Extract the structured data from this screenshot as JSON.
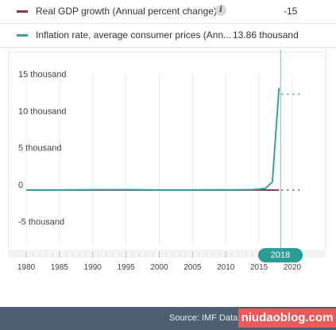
{
  "legend": {
    "items": [
      {
        "label": "Real GDP growth (Annual percent change)",
        "value": "-15",
        "color": "#7a3e52",
        "info_icon": "info-icon"
      },
      {
        "label": "Inflation rate, average consumer prices (Ann...",
        "value": "13.86 thousand",
        "color": "#3aa39a"
      }
    ]
  },
  "selected_year": "2018",
  "footer": {
    "source": "Source: IMF DataM",
    "watermark": "niudaoblog.com"
  },
  "chart_data": {
    "type": "line",
    "y_ticks": [
      "15 thousand",
      "10 thousand",
      "5 thousand",
      "0",
      "-5 thousand"
    ],
    "x_ticks": [
      "1980",
      "1985",
      "1990",
      "1995",
      "2000",
      "2005",
      "2010",
      "2015",
      "2020"
    ],
    "ylim": [
      -6000,
      16000
    ],
    "xlim": [
      1979,
      2022
    ],
    "grid": true,
    "series": [
      {
        "name": "Real GDP growth (Annual percent change)",
        "color": "#7a3e52",
        "x": [
          1980,
          1985,
          1990,
          1995,
          2000,
          2005,
          2010,
          2013,
          2014,
          2015,
          2016,
          2017,
          2018
        ],
        "y": [
          0,
          0,
          0,
          0,
          0,
          0,
          0,
          0,
          0,
          0,
          0,
          0,
          -15
        ],
        "projection": {
          "x": [
            2018,
            2022
          ],
          "y": [
            0,
            0
          ]
        }
      },
      {
        "name": "Inflation rate, average consumer prices (Annual percent change)",
        "color": "#3aa39a",
        "x": [
          1980,
          1985,
          1990,
          1995,
          2000,
          2005,
          2010,
          2013,
          2014,
          2015,
          2016,
          2017,
          2018
        ],
        "y": [
          20,
          10,
          40,
          60,
          20,
          20,
          30,
          40,
          60,
          120,
          250,
          1100,
          13860
        ],
        "projection": {
          "x": [
            2018,
            2022
          ],
          "y": [
            13000,
            13000
          ]
        }
      }
    ]
  }
}
